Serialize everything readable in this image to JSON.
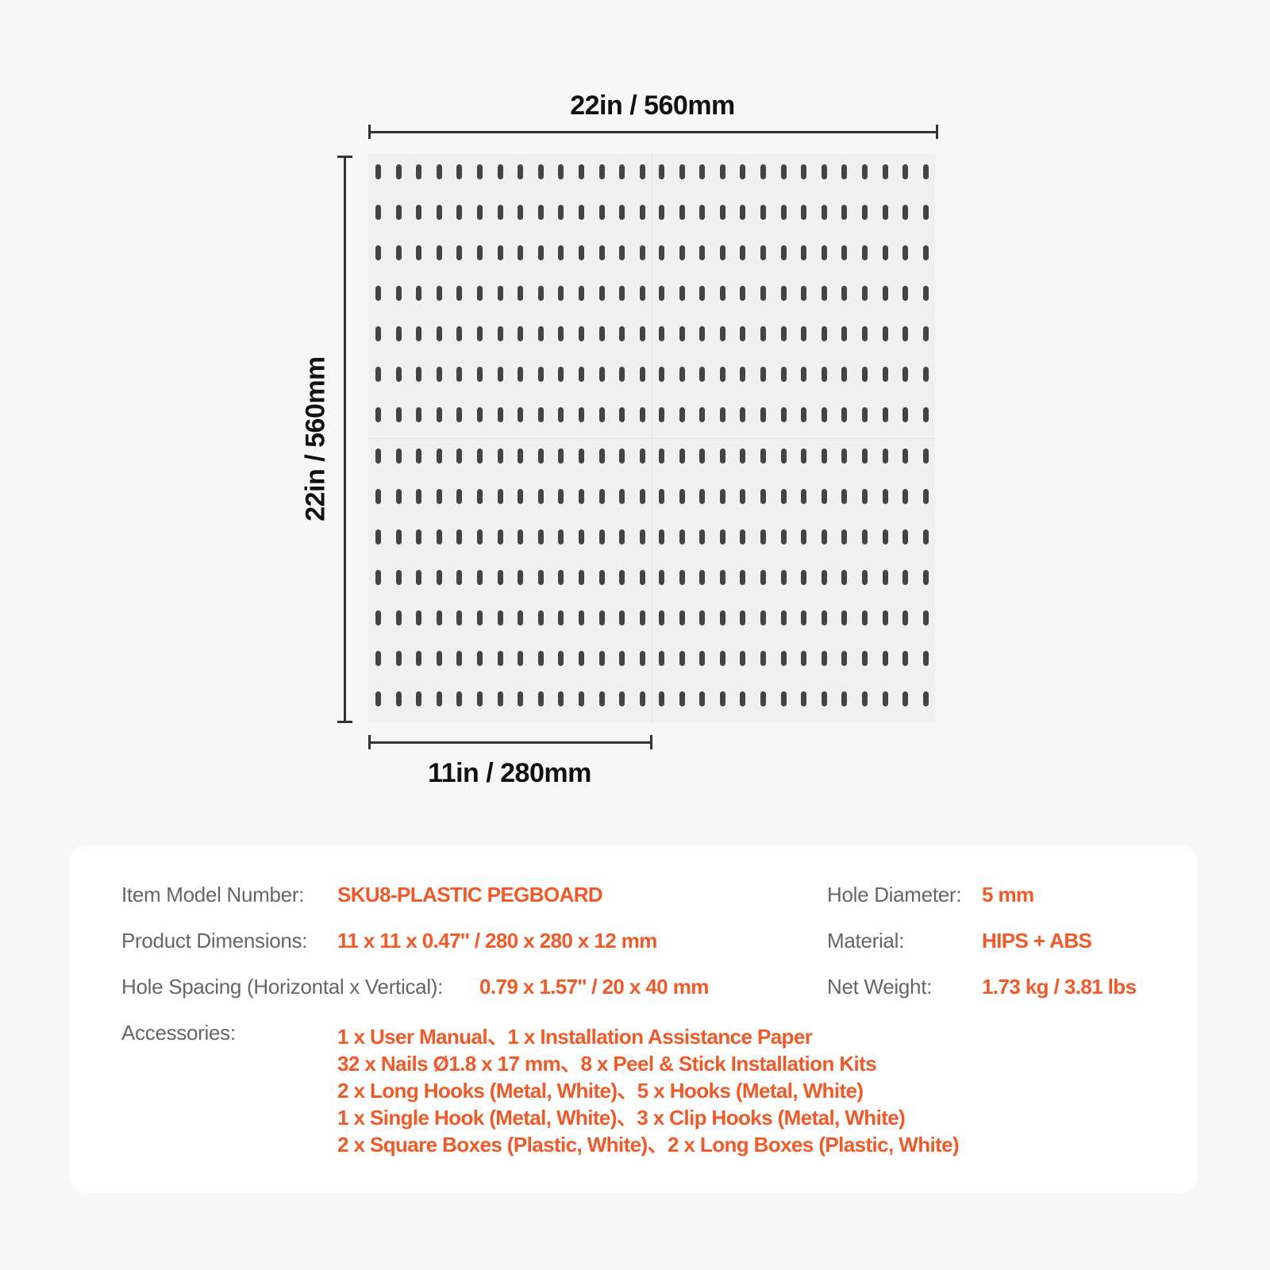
{
  "dimensions": {
    "width": "22in / 560mm",
    "height": "22in / 560mm",
    "panel_width": "11in / 280mm"
  },
  "pegboard": {
    "panels": 4,
    "hole_columns_per_panel": 14,
    "hole_rows_per_panel": 7,
    "board_color": "#f0f0f0",
    "hole_color": "#444444"
  },
  "specs": {
    "model_label": "Item Model Number:",
    "model_value": "SKU8-PLASTIC PEGBOARD",
    "dimensions_label": "Product Dimensions:",
    "dimensions_value": "11 x 11 x 0.47'' / 280 x 280 x 12 mm",
    "spacing_label": "Hole Spacing (Horizontal x Vertical):",
    "spacing_value": "0.79 x 1.57'' / 20 x 40 mm",
    "hole_label": "Hole Diameter:",
    "hole_value": "5 mm",
    "material_label": "Material:",
    "material_value": "HIPS + ABS",
    "weight_label": "Net Weight:",
    "weight_value": "1.73 kg / 3.81 lbs",
    "accessories_label": "Accessories:",
    "accessories": [
      "1 x User Manual、1 x Installation Assistance Paper",
      "32 x Nails  Ø1.8 x 17 mm、8 x Peel & Stick Installation Kits",
      "2 x Long Hooks (Metal, White)、5 x Hooks (Metal, White)",
      "1 x Single Hook (Metal, White)、3 x Clip Hooks (Metal, White)",
      "2 x Square Boxes (Plastic, White)、2 x Long Boxes (Plastic, White)"
    ]
  },
  "colors": {
    "accent": "#f05a28",
    "label": "#666666"
  }
}
